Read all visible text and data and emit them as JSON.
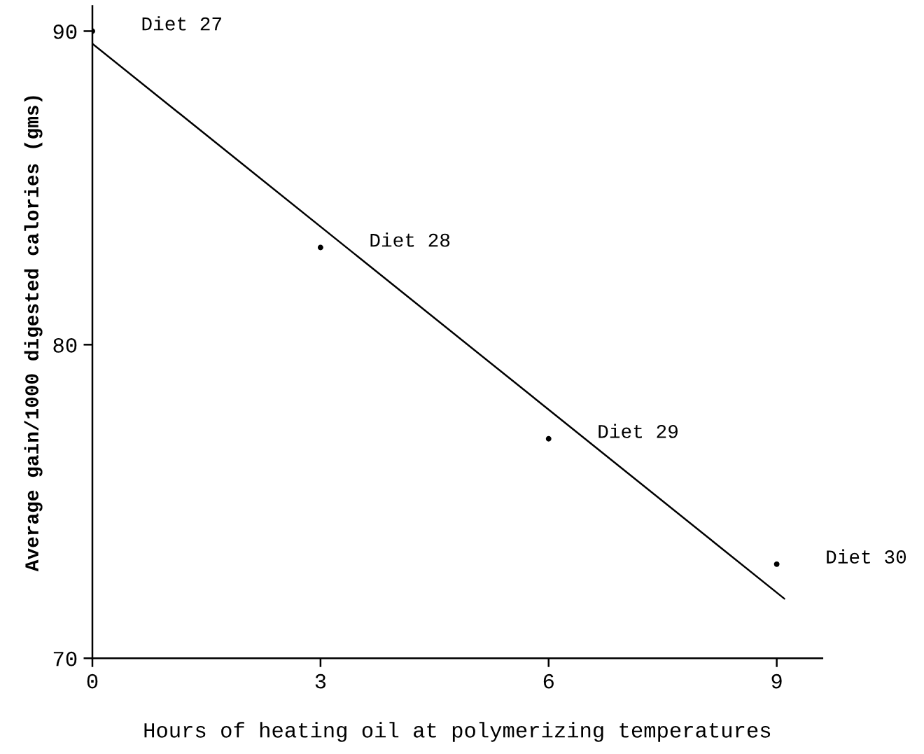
{
  "chart_data": {
    "type": "scatter",
    "xlabel": "Hours of heating oil at polymerizing temperatures",
    "ylabel": "Average gain/1000 digested calories (gms)",
    "series": [
      {
        "color": "#000000",
        "x": [
          0,
          3,
          6,
          9
        ],
        "values": [
          90,
          83.1,
          77.0,
          73.0
        ],
        "marker": "circle"
      },
      {
        "type": "line",
        "color": "#000000",
        "x": [
          0,
          9.1
        ],
        "values": [
          89.6,
          71.9
        ],
        "marker": "none",
        "line_style": "solid"
      }
    ],
    "xlim": [
      0,
      9.6
    ],
    "ylim": [
      70,
      90.8
    ],
    "xticks": [
      0,
      3,
      6,
      9
    ],
    "yticks": [
      70,
      80,
      90
    ],
    "grid": false,
    "legend": false,
    "annotations": [
      {
        "text": "Diet 27",
        "x": 0,
        "y": 90
      },
      {
        "text": "Diet 28",
        "x": 3,
        "y": 83.1
      },
      {
        "text": "Diet 29",
        "x": 6,
        "y": 77.0
      },
      {
        "text": "Diet 30",
        "x": 9,
        "y": 73.0
      }
    ]
  }
}
